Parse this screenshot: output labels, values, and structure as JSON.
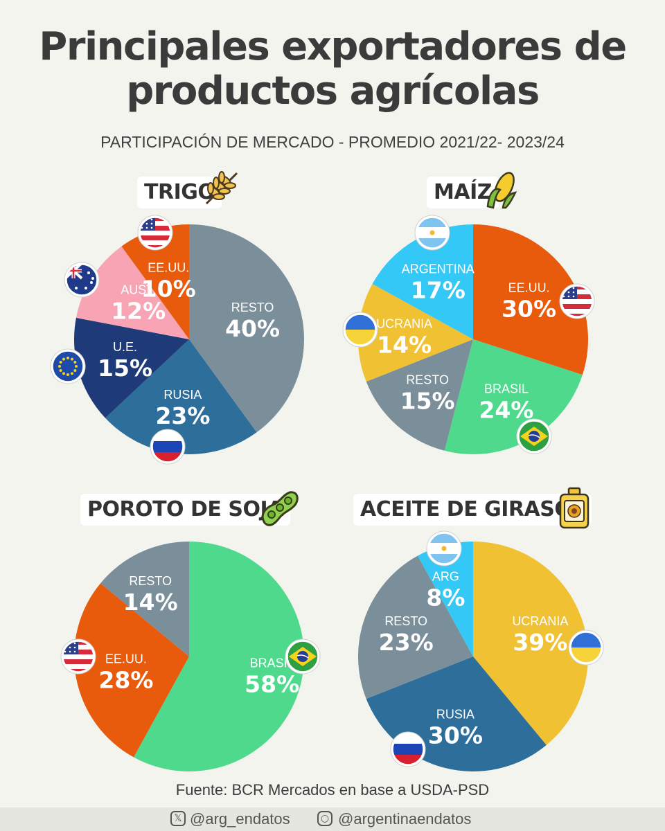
{
  "title_line1": "Principales exportadores de",
  "title_line2": "productos agrícolas",
  "subtitle": "PARTICIPACIÓN DE MERCADO - PROMEDIO 2021/22- 2023/24",
  "source": "Fuente: BCR Mercados en base a USDA-PSD",
  "footer": {
    "twitter_handle": "@arg_endatos",
    "instagram_handle": "@argentinaendatos",
    "twitter_icon": "x-logo-icon",
    "instagram_icon": "instagram-icon"
  },
  "colors": {
    "gray": "#7b8f9b",
    "steel_blue": "#2e6e9b",
    "navy": "#1e3a78",
    "pink": "#f8a4b4",
    "orange": "#e85a0c",
    "light_blue": "#33c8f5",
    "yellow": "#f0c233",
    "green": "#4ed98d"
  },
  "chart_data": [
    {
      "type": "pie",
      "title": "TRIGO",
      "icon": "wheat-icon",
      "slices": [
        {
          "label": "RESTO",
          "value": 40,
          "display": "40%",
          "color": "#7b8f9b",
          "flag": ""
        },
        {
          "label": "RUSIA",
          "value": 23,
          "display": "23%",
          "color": "#2e6e9b",
          "flag": "russia-flag-icon"
        },
        {
          "label": "U.E.",
          "value": 15,
          "display": "15%",
          "color": "#1e3a78",
          "flag": "eu-flag-icon"
        },
        {
          "label": "AUST.",
          "value": 12,
          "display": "12%",
          "color": "#f8a4b4",
          "flag": "australia-flag-icon"
        },
        {
          "label": "EE.UU.",
          "value": 10,
          "display": "10%",
          "color": "#e85a0c",
          "flag": "usa-flag-icon"
        }
      ]
    },
    {
      "type": "pie",
      "title": "MAÍZ",
      "icon": "corn-icon",
      "slices": [
        {
          "label": "EE.UU.",
          "value": 30,
          "display": "30%",
          "color": "#e85a0c",
          "flag": "usa-flag-icon"
        },
        {
          "label": "BRASIL",
          "value": 24,
          "display": "24%",
          "color": "#4ed98d",
          "flag": "brazil-flag-icon"
        },
        {
          "label": "RESTO",
          "value": 15,
          "display": "15%",
          "color": "#7b8f9b",
          "flag": ""
        },
        {
          "label": "UCRANIA",
          "value": 14,
          "display": "14%",
          "color": "#f0c233",
          "flag": "ukraine-flag-icon"
        },
        {
          "label": "ARGENTINA",
          "value": 17,
          "display": "17%",
          "color": "#33c8f5",
          "flag": "argentina-flag-icon"
        }
      ]
    },
    {
      "type": "pie",
      "title": "POROTO DE SOJA",
      "icon": "soybean-icon",
      "slices": [
        {
          "label": "BRASIL",
          "value": 58,
          "display": "58%",
          "color": "#4ed98d",
          "flag": "brazil-flag-icon"
        },
        {
          "label": "EE.UU.",
          "value": 28,
          "display": "28%",
          "color": "#e85a0c",
          "flag": "usa-flag-icon"
        },
        {
          "label": "RESTO",
          "value": 14,
          "display": "14%",
          "color": "#7b8f9b",
          "flag": ""
        }
      ]
    },
    {
      "type": "pie",
      "title": "ACEITE DE GIRASOL",
      "icon": "sunflower-oil-bottle-icon",
      "slices": [
        {
          "label": "UCRANIA",
          "value": 39,
          "display": "39%",
          "color": "#f0c233",
          "flag": "ukraine-flag-icon"
        },
        {
          "label": "RUSIA",
          "value": 30,
          "display": "30%",
          "color": "#2e6e9b",
          "flag": "russia-flag-icon"
        },
        {
          "label": "RESTO",
          "value": 23,
          "display": "23%",
          "color": "#7b8f9b",
          "flag": ""
        },
        {
          "label": "ARG",
          "value": 8,
          "display": "8%",
          "color": "#33c8f5",
          "flag": "argentina-flag-icon"
        }
      ]
    }
  ]
}
